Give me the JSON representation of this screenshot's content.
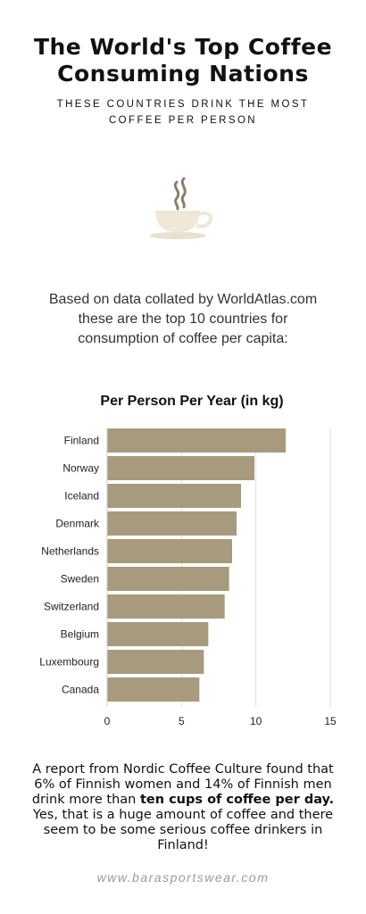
{
  "header": {
    "title_line1": "The World's Top Coffee",
    "title_line2": "Consuming Nations",
    "subtitle_line1": "THESE COUNTRIES DRINK THE MOST",
    "subtitle_line2": "COFFEE PER PERSON"
  },
  "icon": "coffee-cup-icon",
  "intro": {
    "line1": "Based on data collated by WorldAtlas.com",
    "line2": "these are the top 10 countries for",
    "line3": "consumption of coffee per capita:"
  },
  "colors": {
    "bar": "#a89a7c",
    "gridline": "#dddddd",
    "footer": "#9a9a9a"
  },
  "chart_data": {
    "type": "bar",
    "orientation": "horizontal",
    "title": "Per Person Per Year (in kg)",
    "categories": [
      "Finland",
      "Norway",
      "Iceland",
      "Denmark",
      "Netherlands",
      "Sweden",
      "Switzerland",
      "Belgium",
      "Luxembourg",
      "Canada"
    ],
    "values": [
      12,
      9.9,
      9,
      8.7,
      8.4,
      8.2,
      7.9,
      6.8,
      6.5,
      6.2
    ],
    "xlim": [
      0,
      15
    ],
    "xticks": [
      "0",
      "5",
      "10",
      "15"
    ],
    "grid": true
  },
  "report": {
    "text_before": "A report from Nordic Coffee Culture found that 6% of Finnish women and 14% of Finnish men drink more than ",
    "bold": "ten cups of coffee per day.",
    "text_after": " Yes, that is a huge amount of coffee and there seem to be some serious coffee drinkers in Finland!"
  },
  "footer": {
    "text": "www.barasportswear.com"
  }
}
